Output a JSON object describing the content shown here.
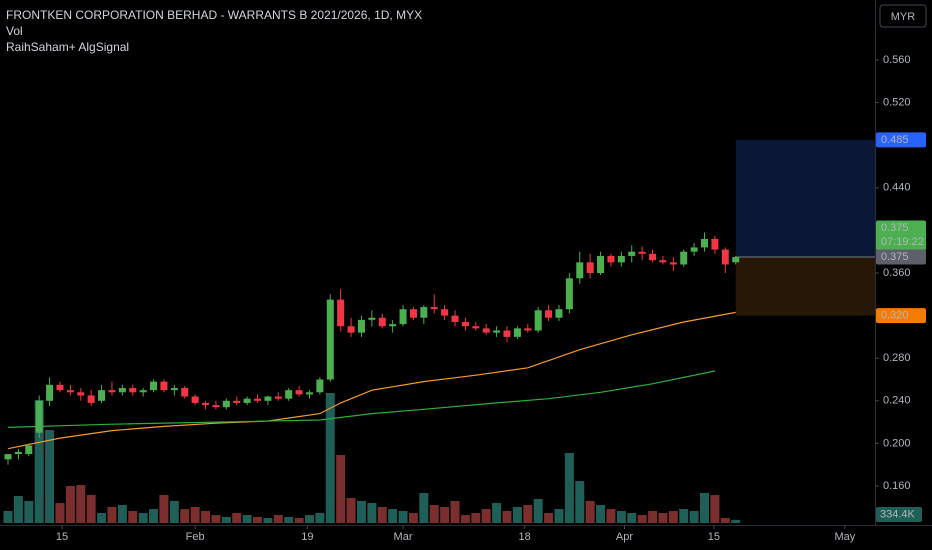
{
  "chart_data": {
    "type": "candlestick",
    "title": "FRONTKEN CORPORATION BERHAD - WARRANTS B 2021/2026, 1D, MYX",
    "indicator_labels": [
      "Vol",
      "RaihSaham+ AlgSignal"
    ],
    "currency": "MYR",
    "up_color": "#4caf50",
    "down_color": "#f23645",
    "open": [
      0.185,
      0.19,
      0.19,
      0.21,
      0.24,
      0.255,
      0.25,
      0.248,
      0.245,
      0.24,
      0.25,
      0.248,
      0.252,
      0.248,
      0.25,
      0.258,
      0.25,
      0.252,
      0.244,
      0.238,
      0.236,
      0.234,
      0.24,
      0.238,
      0.242,
      0.24,
      0.244,
      0.242,
      0.25,
      0.246,
      0.248,
      0.26,
      0.335,
      0.31,
      0.304,
      0.316,
      0.318,
      0.31,
      0.312,
      0.326,
      0.318,
      0.328,
      0.326,
      0.32,
      0.314,
      0.31,
      0.308,
      0.304,
      0.306,
      0.3,
      0.308,
      0.306,
      0.325,
      0.318,
      0.326,
      0.355,
      0.37,
      0.36,
      0.376,
      0.37,
      0.376,
      0.38,
      0.378,
      0.372,
      0.37,
      0.368,
      0.38,
      0.384,
      0.392,
      0.382,
      0.37
    ],
    "high": [
      0.19,
      0.195,
      0.2,
      0.245,
      0.262,
      0.258,
      0.255,
      0.252,
      0.25,
      0.255,
      0.258,
      0.255,
      0.255,
      0.252,
      0.26,
      0.26,
      0.255,
      0.254,
      0.246,
      0.24,
      0.24,
      0.242,
      0.244,
      0.244,
      0.246,
      0.245,
      0.248,
      0.252,
      0.254,
      0.25,
      0.262,
      0.34,
      0.345,
      0.318,
      0.32,
      0.325,
      0.322,
      0.316,
      0.33,
      0.328,
      0.33,
      0.34,
      0.33,
      0.325,
      0.318,
      0.314,
      0.312,
      0.31,
      0.31,
      0.31,
      0.312,
      0.328,
      0.33,
      0.33,
      0.36,
      0.38,
      0.378,
      0.38,
      0.378,
      0.38,
      0.386,
      0.385,
      0.382,
      0.376,
      0.375,
      0.382,
      0.388,
      0.398,
      0.395,
      0.384,
      0.376
    ],
    "low": [
      0.18,
      0.185,
      0.188,
      0.205,
      0.235,
      0.248,
      0.245,
      0.24,
      0.235,
      0.238,
      0.245,
      0.245,
      0.245,
      0.244,
      0.248,
      0.248,
      0.245,
      0.242,
      0.236,
      0.232,
      0.232,
      0.232,
      0.236,
      0.236,
      0.238,
      0.236,
      0.24,
      0.24,
      0.244,
      0.242,
      0.246,
      0.258,
      0.305,
      0.3,
      0.3,
      0.31,
      0.308,
      0.304,
      0.31,
      0.316,
      0.312,
      0.322,
      0.316,
      0.31,
      0.306,
      0.306,
      0.302,
      0.3,
      0.295,
      0.298,
      0.304,
      0.304,
      0.315,
      0.315,
      0.322,
      0.35,
      0.355,
      0.358,
      0.366,
      0.366,
      0.37,
      0.372,
      0.37,
      0.368,
      0.362,
      0.366,
      0.376,
      0.38,
      0.378,
      0.36,
      0.368
    ],
    "close": [
      0.19,
      0.192,
      0.198,
      0.24,
      0.255,
      0.25,
      0.248,
      0.245,
      0.238,
      0.25,
      0.248,
      0.252,
      0.248,
      0.25,
      0.258,
      0.25,
      0.252,
      0.244,
      0.238,
      0.236,
      0.234,
      0.24,
      0.238,
      0.242,
      0.24,
      0.244,
      0.242,
      0.25,
      0.246,
      0.248,
      0.26,
      0.335,
      0.31,
      0.304,
      0.316,
      0.318,
      0.31,
      0.312,
      0.326,
      0.318,
      0.328,
      0.326,
      0.32,
      0.314,
      0.31,
      0.308,
      0.304,
      0.306,
      0.3,
      0.308,
      0.306,
      0.325,
      0.318,
      0.326,
      0.355,
      0.37,
      0.36,
      0.376,
      0.37,
      0.376,
      0.38,
      0.378,
      0.372,
      0.37,
      0.368,
      0.38,
      0.384,
      0.392,
      0.382,
      0.368,
      0.375
    ],
    "volume": {
      "up_color": "#1f5f58",
      "down_color": "#7a2e2e",
      "values": [
        1280000,
        2880000,
        2350000,
        13120000,
        9920000,
        2130000,
        3950000,
        4050000,
        2990000,
        1070000,
        1710000,
        1920000,
        1280000,
        1070000,
        1490000,
        2990000,
        2350000,
        1490000,
        1710000,
        1280000,
        850000,
        640000,
        1070000,
        850000,
        640000,
        530000,
        850000,
        640000,
        530000,
        850000,
        1070000,
        13870000,
        7250000,
        2670000,
        2350000,
        2130000,
        1710000,
        1490000,
        1280000,
        1070000,
        3200000,
        1920000,
        1710000,
        2350000,
        850000,
        1070000,
        1490000,
        2130000,
        1280000,
        1710000,
        1920000,
        2560000,
        1070000,
        1490000,
        7470000,
        4480000,
        2350000,
        1920000,
        1490000,
        1280000,
        1070000,
        850000,
        1280000,
        1070000,
        1280000,
        1490000,
        1280000,
        3200000,
        2990000,
        530000,
        334400
      ],
      "last_label": "334.4K"
    },
    "y2lim": [
      0,
      16000000
    ],
    "lines": [
      {
        "color": "#f59b2b",
        "x": [
          0,
          5,
          10,
          15,
          20,
          25,
          30,
          32,
          35,
          40,
          45,
          50,
          55,
          60,
          65,
          70
        ],
        "values": [
          0.195,
          0.205,
          0.212,
          0.216,
          0.219,
          0.221,
          0.228,
          0.238,
          0.25,
          0.258,
          0.264,
          0.271,
          0.288,
          0.302,
          0.314,
          0.323
        ]
      },
      {
        "color": "#2eae3a",
        "x": [
          0,
          10,
          20,
          30,
          35,
          40,
          47,
          52,
          57,
          62,
          68
        ],
        "values": [
          0.215,
          0.218,
          0.22,
          0.222,
          0.228,
          0.232,
          0.238,
          0.242,
          0.248,
          0.256,
          0.268
        ]
      }
    ],
    "position": {
      "x_start": 70,
      "entry": 0.375,
      "target": 0.485,
      "stop": 0.32
    },
    "price_labels": [
      {
        "value": 0.485,
        "label": "0.485",
        "color": "#2962ff"
      },
      {
        "value": 0.375,
        "label": "0.375",
        "color": "#4caf50",
        "countdown": "07:19:22"
      },
      {
        "value": 0.375,
        "label": "0.375",
        "color": "#5d606b"
      },
      {
        "value": 0.32,
        "label": "0.320",
        "color": "#f57c00"
      }
    ],
    "xlim": [
      -0.77,
      83.4
    ],
    "xticks": [
      {
        "value": 5.2,
        "label": "15"
      },
      {
        "value": 18,
        "label": "Feb"
      },
      {
        "value": 28.8,
        "label": "19"
      },
      {
        "value": 38,
        "label": "Mar"
      },
      {
        "value": 49.7,
        "label": "18"
      },
      {
        "value": 59.3,
        "label": "Apr"
      },
      {
        "value": 67.9,
        "label": "15"
      },
      {
        "value": 80.5,
        "label": "May"
      }
    ],
    "ylim": [
      0.1234,
      0.6163
    ],
    "yticks": [
      {
        "value": 0.56,
        "label": "0.560"
      },
      {
        "value": 0.52,
        "label": "0.520"
      },
      {
        "value": 0.44,
        "label": "0.440"
      },
      {
        "value": 0.36,
        "label": "0.360"
      },
      {
        "value": 0.28,
        "label": "0.280"
      },
      {
        "value": 0.24,
        "label": "0.240"
      },
      {
        "value": 0.2,
        "label": "0.200"
      },
      {
        "value": 0.16,
        "label": "0.160"
      }
    ]
  }
}
